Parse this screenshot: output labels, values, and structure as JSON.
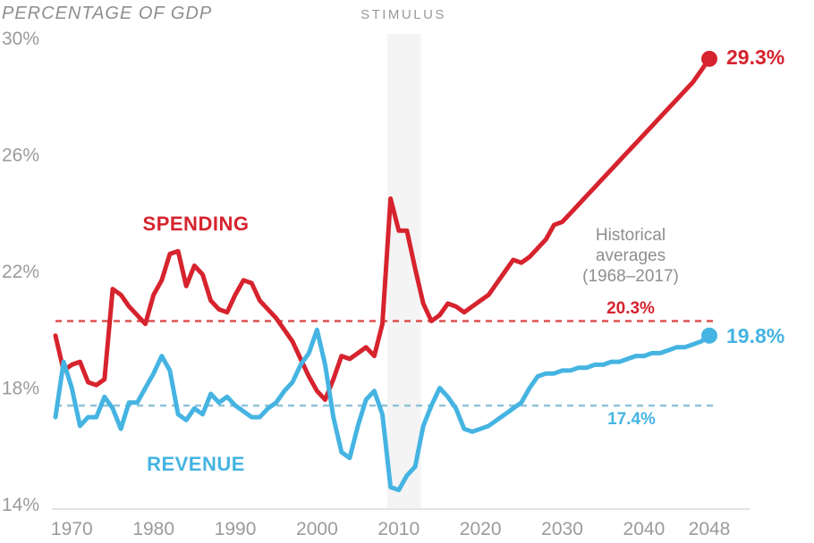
{
  "header": {
    "title": "PERCENTAGE OF GDP"
  },
  "annotations": {
    "stimulus": "STIMULUS",
    "spending_label": "SPENDING",
    "revenue_label": "REVENUE",
    "historical_averages_note": "Historical\naverages\n(1968–2017)",
    "avg_spending_label": "20.3%",
    "avg_revenue_label": "17.4%",
    "end_spending_label": "29.3%",
    "end_revenue_label": "19.8%"
  },
  "colors": {
    "spending": "#d6232e",
    "revenue": "#45b4e2",
    "avg_spending_line": "#de5050",
    "avg_revenue_line": "#8fc3d9",
    "band": "#f4f4f4",
    "axis": "#e3e3e3",
    "tick_text": "#9b9b9b",
    "note_text": "#8e8e8e"
  },
  "chart_data": {
    "type": "line",
    "title": "PERCENTAGE OF GDP",
    "ylabel": "PERCENTAGE OF GDP",
    "xlabel": "",
    "grid": false,
    "legend_position": "inline-labels",
    "xlim": [
      1968,
      2048
    ],
    "ylim": [
      14,
      30
    ],
    "x_ticks": [
      {
        "value": 1970,
        "label": "1970"
      },
      {
        "value": 1980,
        "label": "1980"
      },
      {
        "value": 1990,
        "label": "1990"
      },
      {
        "value": 2000,
        "label": "2000"
      },
      {
        "value": 2010,
        "label": "2010"
      },
      {
        "value": 2020,
        "label": "2020"
      },
      {
        "value": 2030,
        "label": "2030"
      },
      {
        "value": 2040,
        "label": "2040"
      },
      {
        "value": 2048,
        "label": "2048"
      }
    ],
    "y_ticks": [
      {
        "value": 30,
        "label": "30%"
      },
      {
        "value": 26,
        "label": "26%"
      },
      {
        "value": 22,
        "label": "22%"
      },
      {
        "value": 18,
        "label": "18%"
      },
      {
        "value": 14,
        "label": "14%"
      }
    ],
    "years": [
      1968,
      1969,
      1970,
      1971,
      1972,
      1973,
      1974,
      1975,
      1976,
      1977,
      1978,
      1979,
      1980,
      1981,
      1982,
      1983,
      1984,
      1985,
      1986,
      1987,
      1988,
      1989,
      1990,
      1991,
      1992,
      1993,
      1994,
      1995,
      1996,
      1997,
      1998,
      1999,
      2000,
      2001,
      2002,
      2003,
      2004,
      2005,
      2006,
      2007,
      2008,
      2009,
      2010,
      2011,
      2012,
      2013,
      2014,
      2015,
      2016,
      2017,
      2018,
      2019,
      2020,
      2021,
      2022,
      2023,
      2024,
      2025,
      2026,
      2027,
      2028,
      2029,
      2030,
      2031,
      2032,
      2033,
      2034,
      2035,
      2036,
      2037,
      2038,
      2039,
      2040,
      2041,
      2042,
      2043,
      2044,
      2045,
      2046,
      2047,
      2048
    ],
    "series": [
      {
        "name": "SPENDING",
        "end_year": 2048,
        "end_value": 29.3,
        "end_label": "29.3%",
        "values": [
          19.8,
          18.6,
          18.8,
          18.9,
          18.2,
          18.1,
          18.3,
          21.4,
          21.2,
          20.8,
          20.5,
          20.2,
          21.2,
          21.7,
          22.6,
          22.7,
          21.5,
          22.2,
          21.9,
          21.0,
          20.7,
          20.6,
          21.2,
          21.7,
          21.6,
          21.0,
          20.7,
          20.4,
          20.0,
          19.6,
          19.0,
          18.4,
          17.9,
          17.6,
          18.3,
          19.1,
          19.0,
          19.2,
          19.4,
          19.1,
          20.2,
          24.5,
          23.4,
          23.4,
          22.1,
          20.9,
          20.3,
          20.5,
          20.9,
          20.8,
          20.6,
          20.8,
          21.0,
          21.2,
          21.6,
          22.0,
          22.4,
          22.3,
          22.5,
          22.8,
          23.1,
          23.6,
          23.7,
          24.0,
          24.3,
          24.6,
          24.9,
          25.2,
          25.5,
          25.8,
          26.1,
          26.4,
          26.7,
          27.0,
          27.3,
          27.6,
          27.9,
          28.2,
          28.5,
          28.9,
          29.3
        ]
      },
      {
        "name": "REVENUE",
        "end_year": 2048,
        "end_value": 19.8,
        "end_label": "19.8%",
        "values": [
          17.0,
          18.9,
          18.0,
          16.7,
          17.0,
          17.0,
          17.7,
          17.3,
          16.6,
          17.5,
          17.5,
          18.0,
          18.5,
          19.1,
          18.6,
          17.1,
          16.9,
          17.3,
          17.1,
          17.8,
          17.5,
          17.7,
          17.4,
          17.2,
          17.0,
          17.0,
          17.3,
          17.5,
          17.9,
          18.2,
          18.8,
          19.2,
          20.0,
          18.8,
          17.0,
          15.8,
          15.6,
          16.7,
          17.6,
          17.9,
          17.1,
          14.6,
          14.5,
          15.0,
          15.3,
          16.7,
          17.4,
          18.0,
          17.7,
          17.3,
          16.6,
          16.5,
          16.6,
          16.7,
          16.9,
          17.1,
          17.3,
          17.5,
          18.0,
          18.4,
          18.5,
          18.5,
          18.6,
          18.6,
          18.7,
          18.7,
          18.8,
          18.8,
          18.9,
          18.9,
          19.0,
          19.1,
          19.1,
          19.2,
          19.2,
          19.3,
          19.4,
          19.4,
          19.5,
          19.6,
          19.8
        ]
      }
    ],
    "reference_lines": [
      {
        "name": "spending-average",
        "value": 20.3,
        "label": "20.3%",
        "style": "dashed"
      },
      {
        "name": "revenue-average",
        "value": 17.4,
        "label": "17.4%",
        "style": "dashed"
      }
    ],
    "stimulus_band": {
      "label": "STIMULUS",
      "from": 2008.6,
      "to": 2012.7
    },
    "historical_averages_note": "Historical averages (1968–2017)"
  }
}
